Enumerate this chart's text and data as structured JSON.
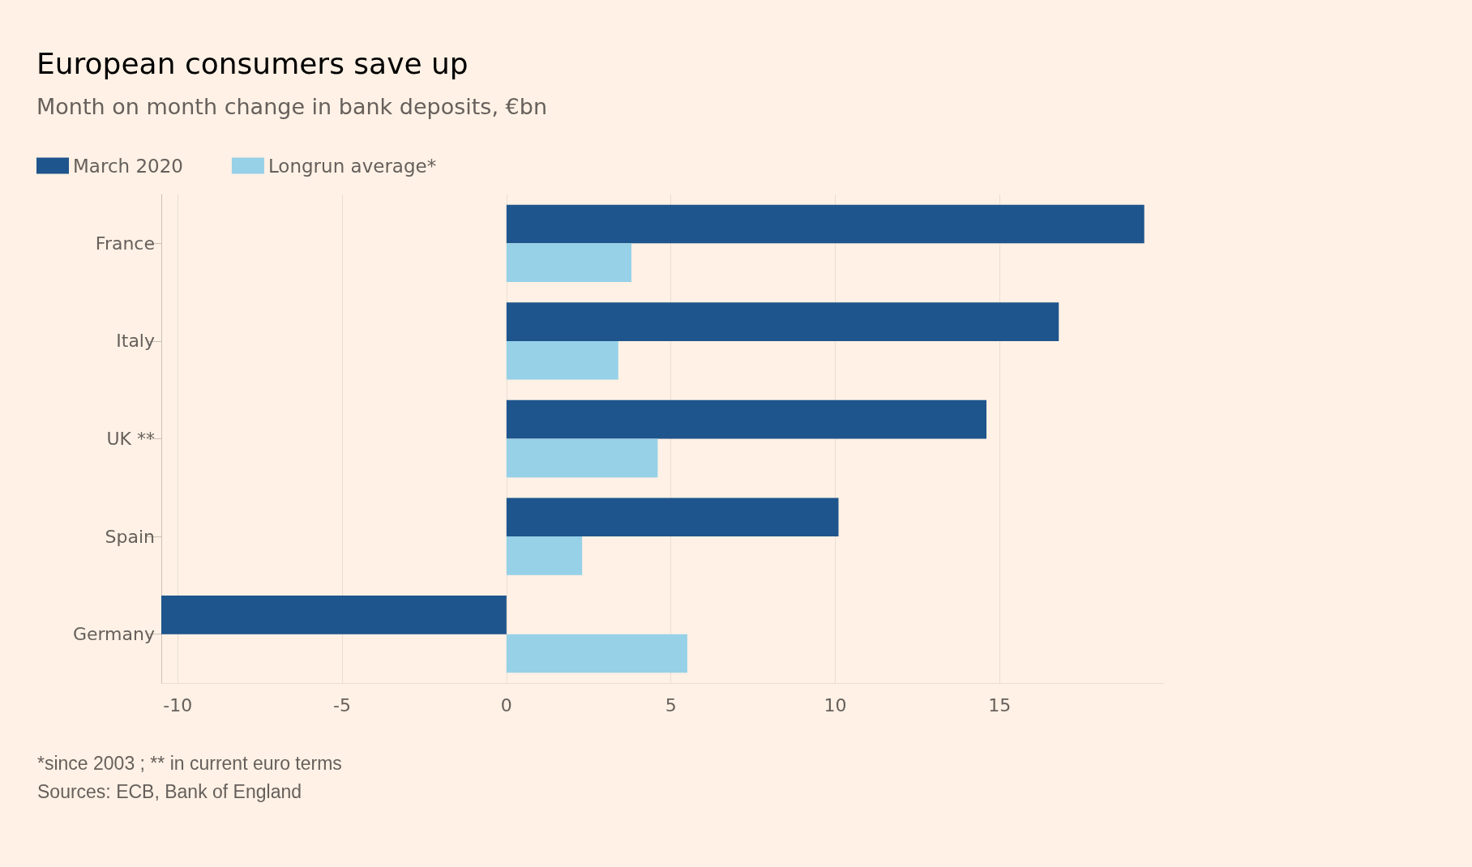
{
  "chart_data": {
    "type": "bar",
    "orientation": "horizontal",
    "title": "European consumers save up",
    "subtitle": "Month on month change in bank deposits, €bn",
    "categories": [
      "France",
      "Italy",
      "UK **",
      "Spain",
      "Germany"
    ],
    "series": [
      {
        "name": "March 2020",
        "color": "#1e558c",
        "values": [
          19.4,
          16.8,
          14.6,
          10.1,
          -10.5
        ]
      },
      {
        "name": "Longrun average*",
        "color": "#96d1e8",
        "values": [
          3.8,
          3.4,
          4.6,
          2.3,
          5.5
        ]
      }
    ],
    "xlim": [
      -10.5,
      20
    ],
    "xticks": [
      -10,
      -5,
      0,
      5,
      10,
      15
    ],
    "grid": "x",
    "legend": "top left",
    "annotations": [
      "*since 2003 ; ** in current euro terms",
      "Sources: ECB, Bank of England"
    ]
  }
}
